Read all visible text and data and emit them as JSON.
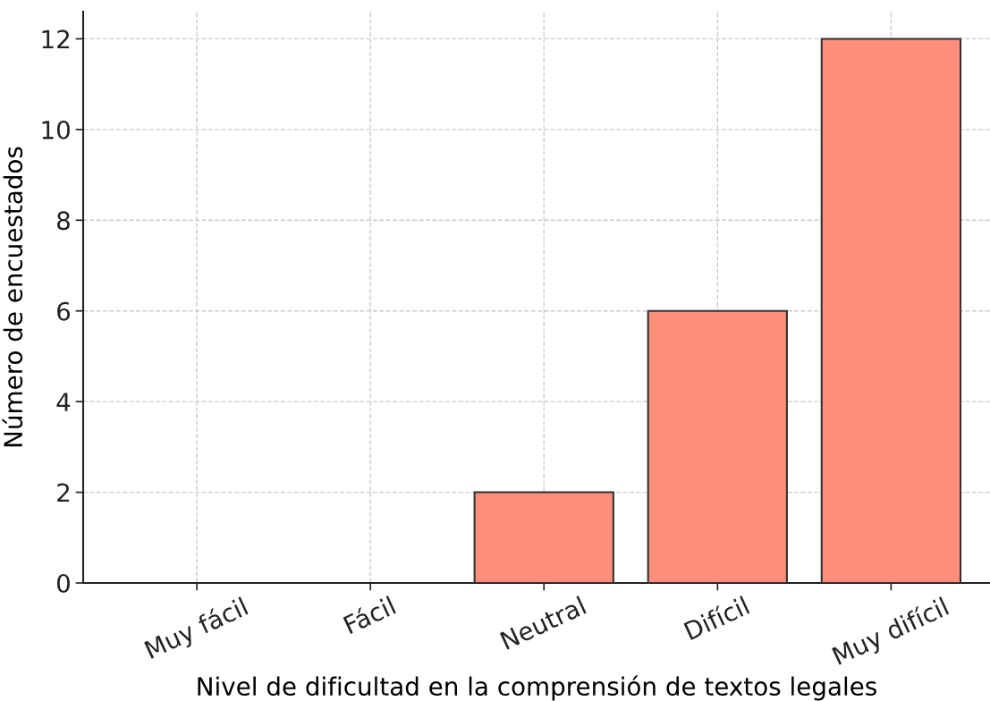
{
  "chart_data": {
    "type": "bar",
    "xlabel": "Nivel de dificultad en la comprensión de textos legales",
    "ylabel": "Número de encuestados",
    "categories": [
      "Muy fácil",
      "Fácil",
      "Neutral",
      "Difícil",
      "Muy difícil"
    ],
    "values": [
      0,
      0,
      2,
      6,
      12
    ],
    "color": "#ff8f7a",
    "ylim": [
      0,
      12.6
    ],
    "yticks": [
      0,
      2,
      4,
      6,
      8,
      10,
      12
    ],
    "grid": true
  }
}
